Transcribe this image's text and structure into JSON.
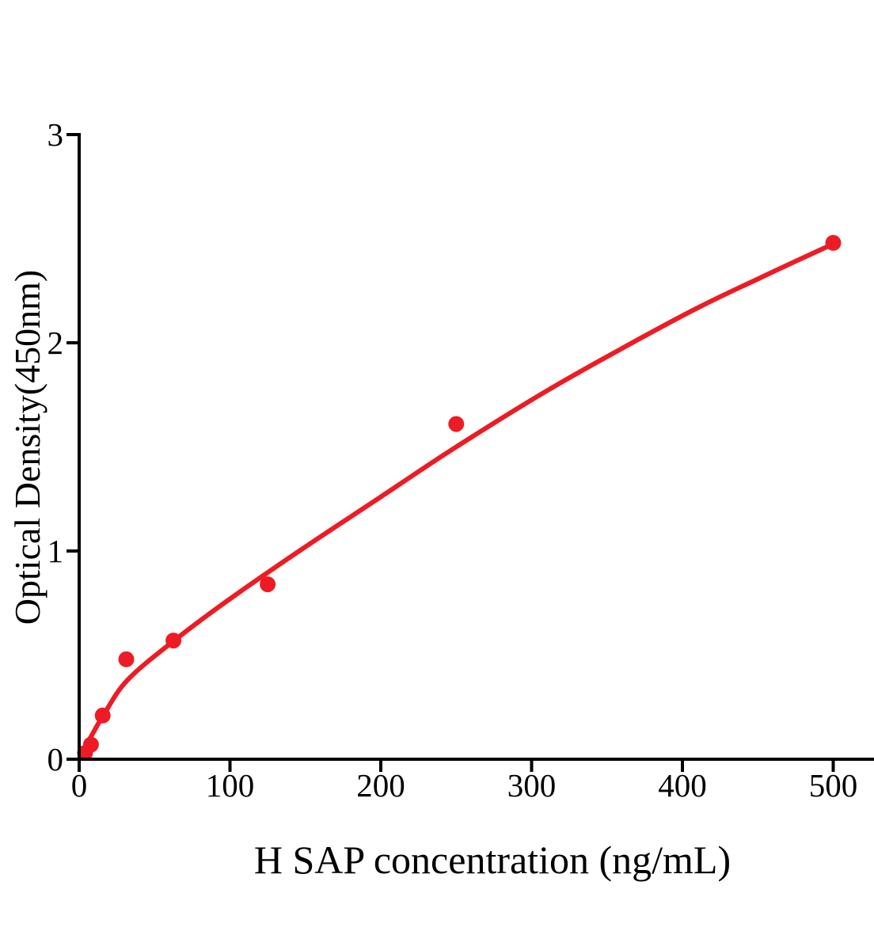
{
  "chart_data": {
    "type": "scatter",
    "title": "",
    "xlabel": "H SAP concentration (ng/mL)",
    "ylabel": "Optical Density(450nm)",
    "xticks": [
      0,
      100,
      200,
      300,
      400,
      500
    ],
    "yticks": [
      0,
      1,
      2,
      3
    ],
    "xlim": [
      0,
      527
    ],
    "ylim": [
      0,
      3
    ],
    "grid": false,
    "legend": "none",
    "accent_color": "#ED1C24",
    "axis_color": "#000000",
    "background_color": "#ffffff",
    "points": [
      {
        "x": 3.9,
        "y": 0.03
      },
      {
        "x": 7.8,
        "y": 0.07
      },
      {
        "x": 15.6,
        "y": 0.21
      },
      {
        "x": 31.25,
        "y": 0.48
      },
      {
        "x": 62.5,
        "y": 0.57
      },
      {
        "x": 125,
        "y": 0.84
      },
      {
        "x": 250,
        "y": 1.61
      },
      {
        "x": 500,
        "y": 2.48
      }
    ],
    "fit_curve_anchors": [
      [
        0,
        0
      ],
      [
        8,
        0.11
      ],
      [
        16,
        0.21
      ],
      [
        32,
        0.38
      ],
      [
        63,
        0.57
      ],
      [
        100,
        0.77
      ],
      [
        150,
        1.02
      ],
      [
        200,
        1.26
      ],
      [
        250,
        1.5
      ],
      [
        315,
        1.79
      ],
      [
        400,
        2.13
      ],
      [
        451,
        2.31
      ],
      [
        500,
        2.475
      ]
    ]
  }
}
